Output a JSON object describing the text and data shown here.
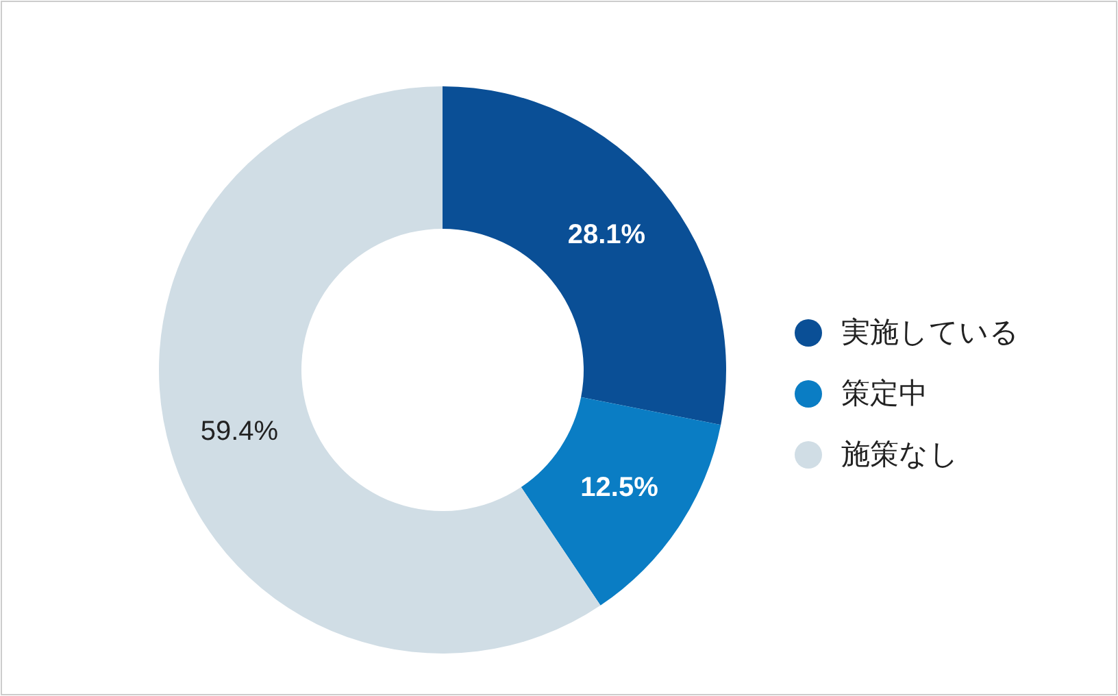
{
  "chart_data": {
    "type": "donut",
    "categories": [
      "実施している",
      "策定中",
      "施策なし"
    ],
    "values": [
      28.1,
      12.5,
      59.4
    ],
    "colors": [
      "#0a4f96",
      "#0a7dc4",
      "#d0dde5"
    ],
    "value_labels": [
      "28.1%",
      "12.5%",
      "59.4%"
    ],
    "legend": "right"
  }
}
